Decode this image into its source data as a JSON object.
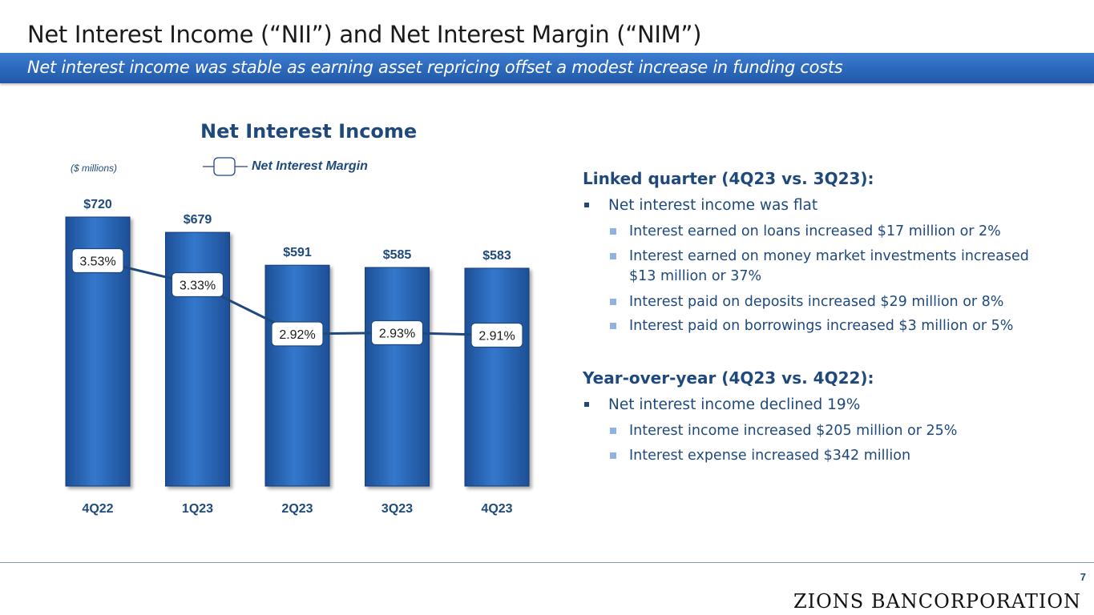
{
  "slide": {
    "title": "Net Interest Income (“NII”) and Net Interest Margin (“NIM”)",
    "subtitle": "Net interest income was stable as earning asset repricing offset a modest increase in funding costs",
    "page_number": "7",
    "logo": "ZIONS BANCORPORATION"
  },
  "chart_data": {
    "type": "bar",
    "title": "Net Interest Income",
    "units_label": "($ millions)",
    "categories": [
      "4Q22",
      "1Q23",
      "2Q23",
      "3Q23",
      "4Q23"
    ],
    "values": [
      720,
      679,
      591,
      585,
      583
    ],
    "value_labels": [
      "$720",
      "$679",
      "$591",
      "$585",
      "$583"
    ],
    "ylim": [
      0,
      750
    ],
    "bar_color": "#2f6cc0",
    "line_series": {
      "name": "Net Interest Margin",
      "values": [
        3.53,
        3.33,
        2.92,
        2.93,
        2.91
      ],
      "labels": [
        "3.53%",
        "3.33%",
        "2.92%",
        "2.93%",
        "2.91%"
      ],
      "ylim": [
        2.0,
        4.3
      ],
      "color": "#1f497d"
    },
    "legend": "top"
  },
  "commentary": {
    "linked_quarter": {
      "heading": "Linked quarter (4Q23 vs. 3Q23):",
      "bullet": "Net interest income was flat",
      "sub": [
        "Interest earned on loans increased $17 million or 2%",
        "Interest earned on money market investments increased $13 million or 37%",
        "Interest paid on deposits increased $29 million or 8%",
        "Interest paid on borrowings increased $3 million or 5%"
      ]
    },
    "year_over_year": {
      "heading": "Year-over-year (4Q23 vs. 4Q22):",
      "bullet": "Net interest income declined 19%",
      "sub": [
        "Interest income increased $205 million or 25%",
        "Interest expense increased $342 million"
      ]
    }
  },
  "colors": {
    "accent": "#1f497d",
    "banner": "#2b68bb",
    "sub_bullet": "#8db3e2"
  }
}
